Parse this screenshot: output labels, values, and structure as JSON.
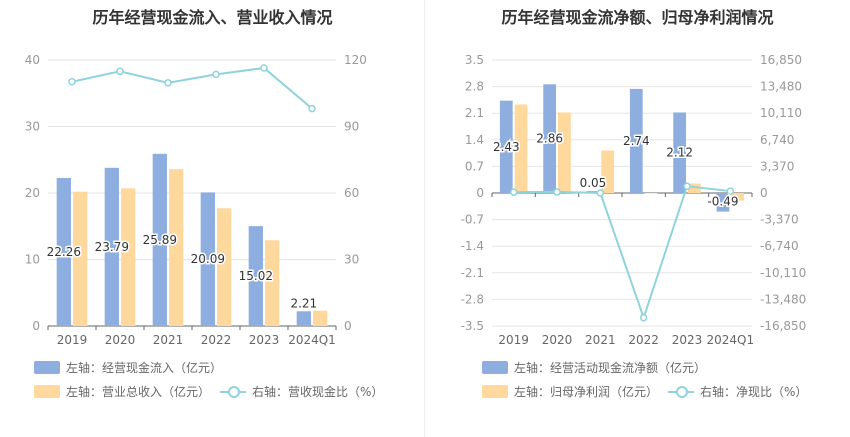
{
  "colors": {
    "blue": "#8eaedf",
    "orange": "#ffd89d",
    "teal": "#8fd3dc",
    "grid": "#e6e6e6",
    "axis": "#999999",
    "label": "#333333"
  },
  "chart_data": [
    {
      "type": "bar",
      "title": "历年经营现金流入、营业收入情况",
      "categories": [
        "2019",
        "2020",
        "2021",
        "2022",
        "2023",
        "2024Q1"
      ],
      "left_axis": {
        "ticks": [
          "0",
          "10",
          "20",
          "30",
          "40"
        ],
        "min": 0,
        "max": 40
      },
      "right_axis": {
        "ticks": [
          "0",
          "30",
          "60",
          "90",
          "120"
        ],
        "min": 0,
        "max": 120
      },
      "series": [
        {
          "name": "左轴：经营现金流入（亿元）",
          "axis": "left",
          "kind": "bar",
          "color": "#8eaedf",
          "values": [
            22.26,
            23.79,
            25.89,
            20.09,
            15.02,
            2.21
          ],
          "labels": [
            "22.26",
            "23.79",
            "25.89",
            "20.09",
            "15.02",
            "2.21"
          ]
        },
        {
          "name": "左轴：营业总收入（亿元）",
          "axis": "left",
          "kind": "bar",
          "color": "#ffd89d",
          "values": [
            20.2,
            20.7,
            23.6,
            17.7,
            12.9,
            2.3
          ]
        },
        {
          "name": "右轴：营收现金比（%）",
          "axis": "right",
          "kind": "line",
          "color": "#8fd3dc",
          "values": [
            110.2,
            114.9,
            109.7,
            113.5,
            116.4,
            98.1
          ]
        }
      ]
    },
    {
      "type": "bar",
      "title": "历年经营现金流净额、归母净利润情况",
      "categories": [
        "2019",
        "2020",
        "2021",
        "2022",
        "2023",
        "2024Q1"
      ],
      "left_axis": {
        "ticks": [
          "-3.5",
          "-2.8",
          "-2.1",
          "-1.4",
          "-0.7",
          "0",
          "0.7",
          "1.4",
          "2.1",
          "2.8",
          "3.5"
        ],
        "min": -3.5,
        "max": 3.5
      },
      "right_axis": {
        "ticks": [
          "-16,850",
          "-13,480",
          "-10,110",
          "-6,740",
          "-3,370",
          "0",
          "3,370",
          "6,740",
          "10,110",
          "13,480",
          "16,850"
        ],
        "min": -16850,
        "max": 16850
      },
      "series": [
        {
          "name": "左轴：经营活动现金流净额（亿元）",
          "axis": "left",
          "kind": "bar",
          "color": "#8eaedf",
          "values": [
            2.43,
            2.86,
            0.05,
            2.74,
            2.12,
            -0.49
          ],
          "labels": [
            "2.43",
            "2.86",
            "0.05",
            "2.74",
            "2.12",
            "-0.49"
          ]
        },
        {
          "name": "左轴：归母净利润（亿元）",
          "axis": "left",
          "kind": "bar",
          "color": "#ffd89d",
          "values": [
            2.33,
            2.12,
            1.12,
            0.0,
            0.25,
            -0.2
          ]
        },
        {
          "name": "右轴：净现比（%）",
          "axis": "right",
          "kind": "line",
          "color": "#8fd3dc",
          "values": [
            104,
            135,
            4.5,
            -15800,
            848,
            245
          ]
        }
      ]
    }
  ]
}
